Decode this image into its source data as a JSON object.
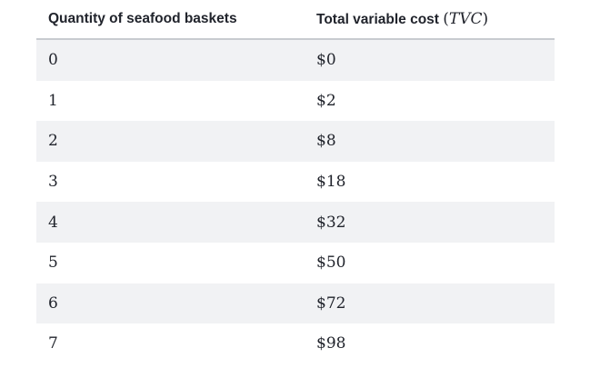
{
  "table": {
    "headers": {
      "quantity": "Quantity of seafood baskets",
      "cost_text": "Total variable cost ",
      "cost_math": "TVC"
    },
    "rows": [
      {
        "quantity": "0",
        "cost": "$0"
      },
      {
        "quantity": "1",
        "cost": "$2"
      },
      {
        "quantity": "2",
        "cost": "$8"
      },
      {
        "quantity": "3",
        "cost": "$18"
      },
      {
        "quantity": "4",
        "cost": "$32"
      },
      {
        "quantity": "5",
        "cost": "$50"
      },
      {
        "quantity": "6",
        "cost": "$72"
      },
      {
        "quantity": "7",
        "cost": "$98"
      }
    ]
  }
}
